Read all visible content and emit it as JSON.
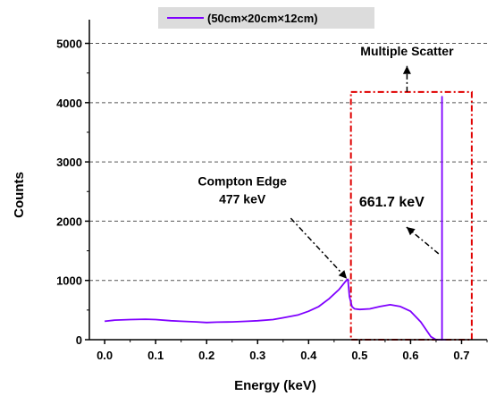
{
  "chart_data": {
    "type": "line",
    "xlabel": "Energy (keV)",
    "ylabel": "Counts",
    "xlim": [
      -0.03,
      0.75
    ],
    "ylim": [
      0,
      5400
    ],
    "x_ticks": [
      0.0,
      0.1,
      0.2,
      0.3,
      0.4,
      0.5,
      0.6,
      0.7
    ],
    "x_tick_labels": [
      "0.0",
      "0.1",
      "0.2",
      "0.3",
      "0.4",
      "0.5",
      "0.6",
      "0.7"
    ],
    "y_ticks": [
      0,
      1000,
      2000,
      3000,
      4000,
      5000
    ],
    "y_tick_labels": [
      "0",
      "1000",
      "2000",
      "3000",
      "4000",
      "5000"
    ],
    "grid": "horizontal-dashed",
    "legend_position": "top-center",
    "series": [
      {
        "name": "(50cm×20cm×12cm)",
        "color": "#7f00ff",
        "x": [
          0.0,
          0.02,
          0.05,
          0.08,
          0.1,
          0.13,
          0.15,
          0.18,
          0.2,
          0.22,
          0.25,
          0.28,
          0.3,
          0.33,
          0.35,
          0.38,
          0.4,
          0.42,
          0.44,
          0.46,
          0.47,
          0.475,
          0.477,
          0.48,
          0.485,
          0.49,
          0.5,
          0.52,
          0.54,
          0.56,
          0.58,
          0.6,
          0.62,
          0.64,
          0.65,
          0.655,
          0.6617,
          0.6617,
          0.6617,
          0.665,
          0.67
        ],
        "y": [
          310,
          330,
          340,
          345,
          340,
          320,
          310,
          300,
          290,
          295,
          300,
          310,
          320,
          340,
          370,
          420,
          480,
          560,
          690,
          850,
          960,
          1010,
          1020,
          730,
          560,
          520,
          510,
          520,
          560,
          590,
          560,
          480,
          300,
          50,
          0,
          0,
          0,
          4100,
          0,
          0,
          0
        ]
      }
    ],
    "annotations": [
      {
        "text": "Compton Edge",
        "x": 0.27,
        "y": 2600
      },
      {
        "text": "477 keV",
        "x": 0.27,
        "y": 2300
      },
      {
        "text": "661.7 keV",
        "x": 0.563,
        "y": 2250
      },
      {
        "text": "Multiple Scatter",
        "x": 0.593,
        "y": 4800
      }
    ],
    "arrows": [
      {
        "from": [
          0.365,
          2050
        ],
        "to": [
          0.475,
          1030
        ]
      },
      {
        "from": [
          0.655,
          1450
        ],
        "to": [
          0.592,
          1900
        ]
      },
      {
        "from": [
          0.593,
          4180
        ],
        "to": [
          0.593,
          4620
        ]
      }
    ],
    "region_box": {
      "x_range": [
        0.483,
        0.72
      ],
      "y_range": [
        0,
        4180
      ],
      "color": "#e00000"
    }
  }
}
